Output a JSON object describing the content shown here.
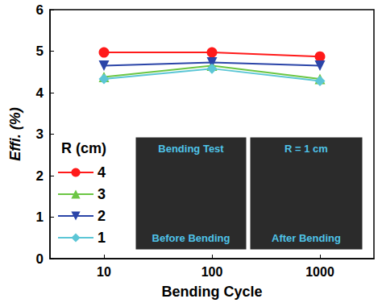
{
  "chart_data": {
    "type": "line",
    "x_label": "Bending Cycle",
    "y_label": "Effi. (%)",
    "categories": [
      "10",
      "100",
      "1000"
    ],
    "ylim": [
      0,
      6
    ],
    "yticks": [
      0,
      1,
      2,
      3,
      4,
      5,
      6
    ],
    "grid": false,
    "legend_title": "R (cm)",
    "series": [
      {
        "name": "4",
        "color": "#ff1a1a",
        "marker": "circle",
        "values": [
          4.97,
          4.97,
          4.87
        ]
      },
      {
        "name": "3",
        "color": "#6cc644",
        "marker": "triangle",
        "values": [
          4.38,
          4.65,
          4.33
        ]
      },
      {
        "name": "2",
        "color": "#2b45a8",
        "marker": "triangle_down",
        "values": [
          4.65,
          4.73,
          4.65
        ]
      },
      {
        "name": "1",
        "color": "#5cc6d6",
        "marker": "diamond",
        "values": [
          4.33,
          4.58,
          4.28
        ]
      }
    ],
    "insets": [
      {
        "top": "Bending Test",
        "bottom": "Before Bending"
      },
      {
        "top": "R = 1 cm",
        "bottom": "After Bending"
      }
    ]
  }
}
